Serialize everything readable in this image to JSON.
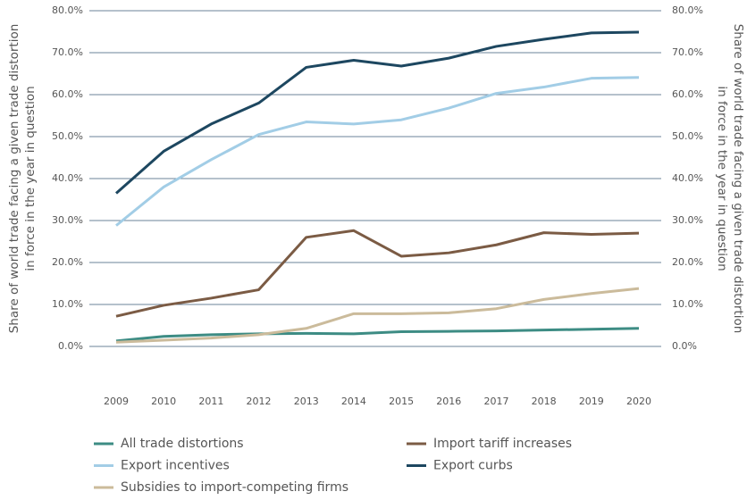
{
  "chart_data": {
    "type": "line",
    "categories": [
      "2009",
      "2010",
      "2011",
      "2012",
      "2013",
      "2014",
      "2015",
      "2016",
      "2017",
      "2018",
      "2019",
      "2020"
    ],
    "series": [
      {
        "name": "All trade distortions",
        "color": "#3d8c84",
        "values": [
          1.3,
          2.4,
          2.8,
          3.0,
          3.1,
          3.0,
          3.5,
          3.6,
          3.7,
          3.9,
          4.1,
          4.3
        ]
      },
      {
        "name": "Import tariff increases",
        "color": "#7b5b44",
        "values": [
          7.2,
          9.8,
          11.5,
          13.5,
          26.0,
          27.6,
          21.5,
          22.3,
          24.2,
          27.1,
          26.7,
          27.0
        ]
      },
      {
        "name": "Export incentives",
        "color": "#a2cde6",
        "values": [
          28.8,
          38.0,
          44.5,
          50.5,
          53.5,
          53.0,
          54.0,
          56.8,
          60.3,
          61.8,
          63.9,
          64.1
        ]
      },
      {
        "name": "Export curbs",
        "color": "#1d4760",
        "values": [
          36.5,
          46.5,
          53.0,
          58.0,
          66.5,
          68.2,
          66.8,
          68.7,
          71.5,
          73.2,
          74.7,
          74.9
        ]
      },
      {
        "name": "Subsidies to import-competing firms",
        "color": "#cbbb9b",
        "values": [
          1.0,
          1.5,
          2.0,
          2.8,
          4.3,
          7.8,
          7.8,
          8.0,
          9.0,
          11.2,
          12.6,
          13.8
        ]
      }
    ],
    "y_label": [
      "Share of world trade facing a given trade distortion",
      "in force in the year in question"
    ],
    "y2_label": [
      "Share of world trade facing a given trade distortion",
      "in force in the year in question"
    ],
    "ylim": [
      0,
      80
    ],
    "yticks": [
      {
        "value": 0,
        "label": "0.0%"
      },
      {
        "value": 10,
        "label": "10.0%"
      },
      {
        "value": 20,
        "label": "20.0%"
      },
      {
        "value": 30,
        "label": "30.0%"
      },
      {
        "value": 40,
        "label": "40.0%"
      },
      {
        "value": 50,
        "label": "50.0%"
      },
      {
        "value": 60,
        "label": "60.0%"
      },
      {
        "value": 70,
        "label": "70.0%"
      },
      {
        "value": 80,
        "label": "80.0%"
      }
    ],
    "y2lim": [
      0,
      80
    ],
    "y2ticks": [
      {
        "value": 0,
        "label": "0.0%"
      },
      {
        "value": 10,
        "label": "10.0%"
      },
      {
        "value": 20,
        "label": "20.0%"
      },
      {
        "value": 30,
        "label": "30.0%"
      },
      {
        "value": 40,
        "label": "40.0%"
      },
      {
        "value": 50,
        "label": "50.0%"
      },
      {
        "value": 60,
        "label": "60.0%"
      },
      {
        "value": 70,
        "label": "70.0%"
      },
      {
        "value": 80,
        "label": "80.0%"
      }
    ],
    "grid": true,
    "grid_color": "#3a5a78"
  }
}
